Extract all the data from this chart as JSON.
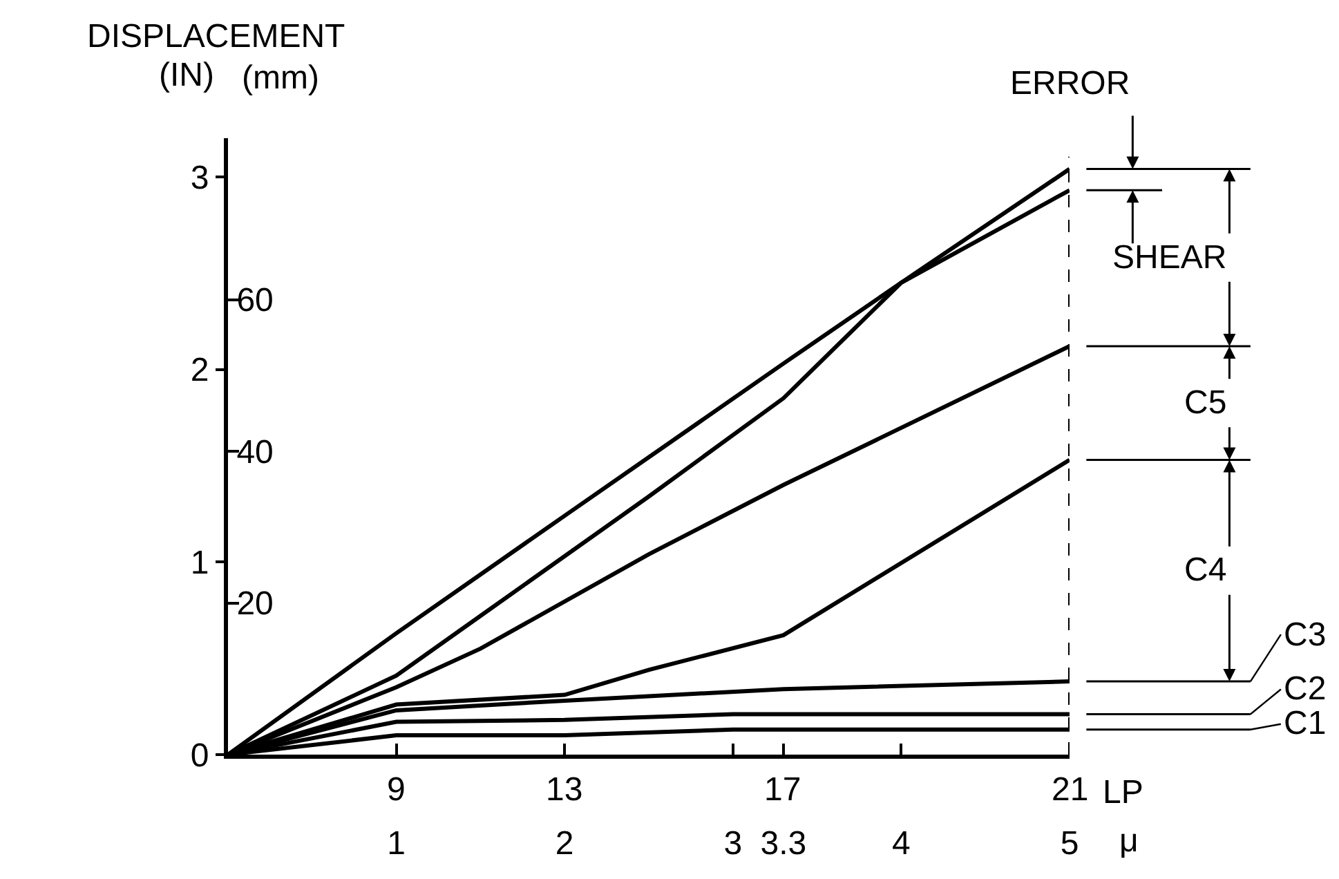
{
  "chart_data": {
    "type": "line",
    "ylabel": "DISPLACEMENT (IN)",
    "y2label": "(mm)",
    "xlabel": "μ",
    "xlim": [
      0,
      5
    ],
    "xticks": [
      1,
      2,
      3,
      3.3,
      4,
      5
    ],
    "ylim": [
      0,
      3.2
    ],
    "yticks": [
      0,
      1,
      2,
      3
    ],
    "y2lim": [
      0,
      81.28
    ],
    "y2ticks": [
      20,
      40,
      60
    ],
    "marker": "none",
    "line_style": "solid",
    "series": [
      {
        "color": "#000000",
        "x": [
          0,
          1,
          2,
          3.3,
          4,
          5
        ],
        "values": [
          0,
          0.63,
          1.24,
          2.03,
          2.45,
          2.93
        ]
      },
      {
        "color": "#000000",
        "x": [
          0,
          1,
          1.5,
          2.5,
          3.3,
          4,
          5
        ],
        "values": [
          0,
          0.41,
          0.72,
          1.34,
          1.85,
          2.45,
          3.04
        ]
      },
      {
        "color": "#000000",
        "x": [
          0,
          1,
          1.5,
          2.5,
          3.3,
          5
        ],
        "values": [
          0,
          0.35,
          0.55,
          1.04,
          1.4,
          2.12
        ]
      },
      {
        "color": "#000000",
        "x": [
          0,
          1,
          2,
          2.5,
          3.3,
          5
        ],
        "values": [
          0,
          0.26,
          0.31,
          0.44,
          0.62,
          1.53
        ]
      },
      {
        "color": "#000000",
        "x": [
          0,
          1,
          2,
          3.3,
          5
        ],
        "values": [
          0,
          0.23,
          0.28,
          0.34,
          0.38
        ]
      },
      {
        "color": "#000000",
        "x": [
          0,
          1,
          2,
          3,
          5
        ],
        "values": [
          0,
          0.17,
          0.18,
          0.21,
          0.21
        ]
      },
      {
        "color": "#000000",
        "x": [
          0,
          1,
          2,
          3,
          5
        ],
        "values": [
          0,
          0.1,
          0.1,
          0.13,
          0.13
        ]
      }
    ],
    "ref_lines": [
      {
        "axis": "x",
        "value": 5,
        "line_style": "dashed",
        "color": "#000000"
      }
    ],
    "annotations": [
      "ERROR",
      "SHEAR",
      "C5",
      "C4",
      "C3",
      "C2",
      "C1",
      "LP",
      "9",
      "13",
      "17",
      "21"
    ]
  }
}
